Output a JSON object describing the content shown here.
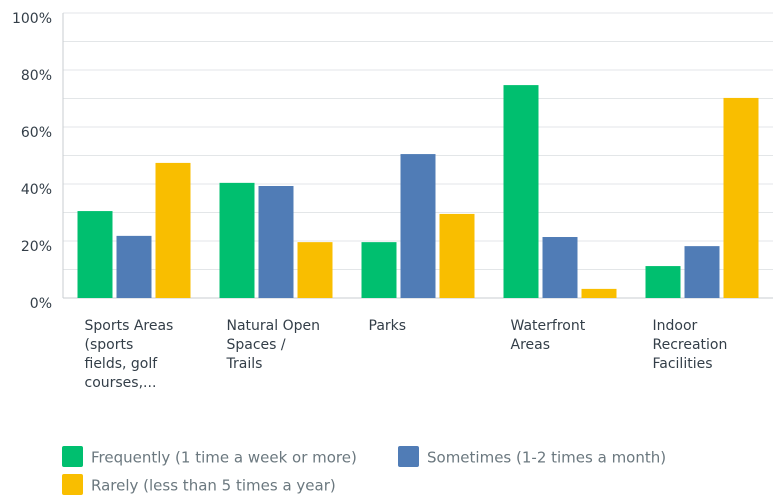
{
  "chart_data": {
    "type": "bar",
    "categories": [
      [
        "Sports Areas",
        "(sports",
        "fields, golf",
        "courses,..."
      ],
      [
        "Natural Open",
        "Spaces /",
        "Trails"
      ],
      [
        "Parks"
      ],
      [
        "Waterfront",
        "Areas"
      ],
      [
        "Indoor",
        "Recreation",
        "Facilities"
      ]
    ],
    "series": [
      {
        "name": "Frequently (1 time a week or more)",
        "color": "#00bf6f",
        "values": [
          30.5,
          40.4,
          19.6,
          74.7,
          11.2
        ]
      },
      {
        "name": "Sometimes (1-2 times a month)",
        "color": "#507cb6",
        "values": [
          21.8,
          39.3,
          50.5,
          21.4,
          18.2
        ]
      },
      {
        "name": "Rarely (less than 5 times a year)",
        "color": "#f9be00",
        "values": [
          47.4,
          19.6,
          29.5,
          3.2,
          70.2
        ]
      }
    ],
    "ylim": [
      0,
      100
    ],
    "yticks": [
      {
        "value": 0,
        "label": "0%"
      },
      {
        "value": 20,
        "label": "20%"
      },
      {
        "value": 40,
        "label": "40%"
      },
      {
        "value": 60,
        "label": "60%"
      },
      {
        "value": 80,
        "label": "80%"
      },
      {
        "value": 100,
        "label": "100%"
      }
    ],
    "minor_yticks": [
      10,
      30,
      50,
      70,
      90
    ],
    "grid": true,
    "legend": "bottom"
  }
}
